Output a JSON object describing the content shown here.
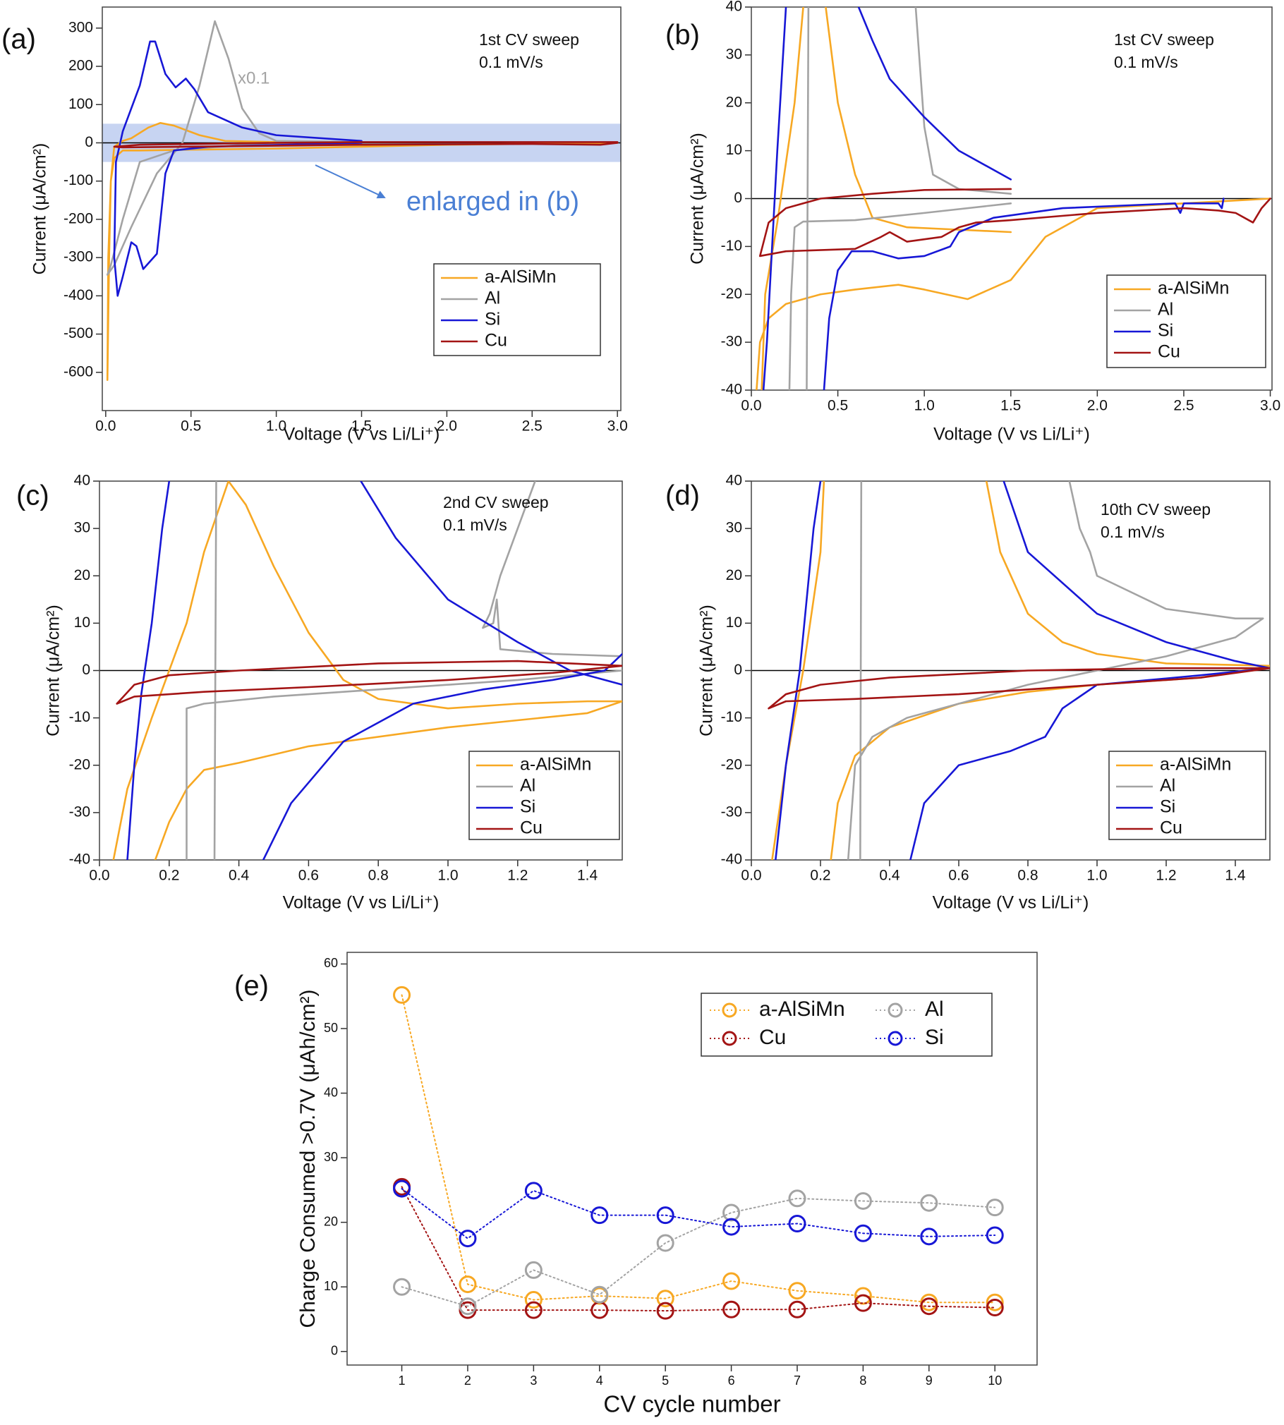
{
  "chart_data": [
    {
      "type": "line",
      "panel_label": "(a)",
      "title": "1st CV sweep",
      "subtitle": "0.1 mV/s",
      "annotations": [
        "x0.1",
        "enlarged in (b)"
      ],
      "highlight_band": [
        -50,
        50
      ],
      "band_color": "#c7d4f2",
      "xlabel": "Voltage (V vs Li/Li⁺)",
      "ylabel": "Current (μA/cm²)",
      "xlim": [
        -0.02,
        3.02
      ],
      "ylim": [
        -700,
        355
      ],
      "xticks": [
        {
          "value": 0,
          "label": "0.0"
        },
        0.5,
        {
          "value": 1,
          "label": "1.0"
        },
        1.5,
        {
          "value": 2,
          "label": "2.0"
        },
        2.5,
        {
          "value": 3,
          "label": "3.0"
        }
      ],
      "yticks": [
        -600,
        -500,
        -400,
        -300,
        -200,
        -100,
        0,
        100,
        200,
        300
      ],
      "zero_line": true,
      "legend": "lower right",
      "series": [
        {
          "name": "a-AlSiMn",
          "color": "#f7a823",
          "x": [
            3.0,
            2.0,
            1.5,
            1.0,
            0.5,
            0.2,
            0.1,
            0.05,
            0.03,
            0.02,
            0.01,
            0.015,
            0.03,
            0.05,
            0.1,
            0.15,
            0.25,
            0.32,
            0.4,
            0.55,
            0.7,
            1.0,
            1.5
          ],
          "values": [
            0,
            -5,
            -10,
            -15,
            -18,
            -20,
            -20,
            -40,
            -100,
            -300,
            -620,
            -300,
            -100,
            -10,
            5,
            12,
            40,
            52,
            45,
            20,
            5,
            2,
            2
          ]
        },
        {
          "name": "Al",
          "color": "#a3a3a3",
          "x": [
            1.5,
            0.8,
            0.4,
            0.2,
            0.1,
            0.03,
            0.01,
            0.05,
            0.15,
            0.3,
            0.45,
            0.55,
            0.64,
            0.72,
            0.8,
            0.9,
            1.0,
            1.5
          ],
          "values": [
            -3,
            -5,
            -20,
            -50,
            -200,
            -320,
            -345,
            -320,
            -220,
            -80,
            0,
            150,
            318,
            220,
            90,
            25,
            5,
            2
          ]
        },
        {
          "name": "Si",
          "color": "#1717d6",
          "x": [
            1.5,
            0.6,
            0.4,
            0.35,
            0.3,
            0.27,
            0.22,
            0.18,
            0.15,
            0.1,
            0.07,
            0.05,
            0.06,
            0.1,
            0.2,
            0.26,
            0.29,
            0.35,
            0.41,
            0.47,
            0.52,
            0.6,
            0.8,
            1.0,
            1.5
          ],
          "values": [
            0,
            -10,
            -20,
            -80,
            -290,
            -305,
            -330,
            -270,
            -260,
            -350,
            -400,
            -300,
            -50,
            30,
            150,
            265,
            265,
            180,
            145,
            168,
            140,
            80,
            40,
            20,
            5
          ]
        },
        {
          "name": "Cu",
          "color": "#a31414",
          "x": [
            3.0,
            2.9,
            2.5,
            1.5,
            0.5,
            0.1,
            0.05,
            0.2,
            1.0,
            1.5,
            3.0
          ],
          "values": [
            0,
            -5,
            -3,
            -5,
            -10,
            -12,
            -10,
            -5,
            0,
            2,
            2
          ]
        }
      ]
    },
    {
      "type": "line",
      "panel_label": "(b)",
      "title": "1st CV sweep",
      "subtitle": "0.1 mV/s",
      "xlabel": "Voltage (V vs Li/Li⁺)",
      "ylabel": "Current (μA/cm²)",
      "xlim": [
        0,
        3.01
      ],
      "ylim": [
        -40,
        40
      ],
      "xticks": [
        {
          "value": 0,
          "label": "0.0"
        },
        0.5,
        {
          "value": 1,
          "label": "1.0"
        },
        1.5,
        {
          "value": 2,
          "label": "2.0"
        },
        2.5,
        {
          "value": 3,
          "label": "3.0"
        }
      ],
      "yticks": [
        -40,
        -30,
        -20,
        -10,
        0,
        10,
        20,
        30,
        40
      ],
      "zero_line": true,
      "legend": "lower right",
      "series": [
        {
          "name": "a-AlSiMn",
          "color": "#f7a823",
          "x": [
            3.0,
            2.5,
            2.0,
            1.7,
            1.5,
            1.25,
            1.0,
            0.85,
            0.6,
            0.4,
            0.2,
            0.1,
            0.05,
            0.03,
            null,
            0.06,
            0.08,
            0.15,
            0.25,
            0.3,
            null,
            0.43,
            0.5,
            0.6,
            0.7,
            0.9,
            1.2,
            1.5
          ],
          "values": [
            0,
            -1,
            -2,
            -8,
            -17,
            -21,
            -19,
            -18,
            -19,
            -20,
            -22,
            -25,
            -30,
            -40,
            null,
            -40,
            -20,
            -5,
            20,
            40,
            null,
            40,
            20,
            5,
            -4,
            -6,
            -6.5,
            -7
          ]
        },
        {
          "name": "Al",
          "color": "#a3a3a3",
          "x": [
            1.5,
            1.2,
            1.05,
            1.0,
            0.95,
            null,
            1.5,
            1.0,
            0.6,
            0.3,
            0.25,
            0.23,
            0.22,
            null,
            0.32,
            0.33
          ],
          "values": [
            1,
            2,
            5,
            15,
            40,
            null,
            -1,
            -3,
            -4.5,
            -4.8,
            -6,
            -20,
            -40,
            null,
            -40,
            40
          ]
        },
        {
          "name": "Si",
          "color": "#1717d6",
          "x": [
            1.5,
            1.2,
            1.0,
            0.8,
            0.7,
            0.62,
            null,
            0.2,
            0.15,
            0.12,
            0.09,
            0.07,
            null,
            0.42,
            0.45,
            0.5,
            0.58,
            0.7,
            0.85,
            1.0,
            1.15,
            1.2,
            1.4,
            1.8,
            2.45,
            2.48,
            2.5,
            2.7,
            2.72,
            2.73
          ],
          "values": [
            4,
            10,
            17,
            25,
            33,
            40,
            null,
            40,
            10,
            -10,
            -30,
            -40,
            null,
            -40,
            -25,
            -15,
            -11,
            -11,
            -12.5,
            -12,
            -10,
            -7,
            -4,
            -2,
            -1,
            -3,
            -1,
            -1,
            -2,
            0
          ]
        },
        {
          "name": "Cu",
          "color": "#a31414",
          "x": [
            1.5,
            1.0,
            0.7,
            0.4,
            0.2,
            0.1,
            0.05,
            0.2,
            0.6,
            0.75,
            0.8,
            0.9,
            1.1,
            1.2,
            1.3,
            1.5,
            2.0,
            2.5,
            2.7,
            2.8,
            2.9,
            2.95,
            3.0
          ],
          "values": [
            2,
            1.8,
            1,
            0,
            -2,
            -5,
            -12,
            -11,
            -10.5,
            -8,
            -7,
            -9,
            -8,
            -6,
            -5,
            -4.5,
            -3,
            -2,
            -2.5,
            -3,
            -5,
            -2,
            0
          ]
        }
      ]
    },
    {
      "type": "line",
      "panel_label": "(c)",
      "title": "2nd CV sweep",
      "subtitle": "0.1 mV/s",
      "xlabel": "Voltage (V vs Li/Li⁺)",
      "ylabel": "Current (μA/cm²)",
      "xlim": [
        0,
        1.5
      ],
      "ylim": [
        -40,
        40
      ],
      "xticks": [
        {
          "value": 0,
          "label": "0.0"
        },
        0.2,
        0.4,
        0.6,
        0.8,
        {
          "value": 1,
          "label": "1.0"
        },
        1.2,
        1.4
      ],
      "yticks": [
        -40,
        -30,
        -20,
        -10,
        0,
        10,
        20,
        30,
        40
      ],
      "zero_line": true,
      "legend": "lower right",
      "series": [
        {
          "name": "a-AlSiMn",
          "color": "#f7a823",
          "x": [
            0.04,
            0.08,
            0.15,
            0.25,
            0.3,
            0.37,
            0.42,
            0.5,
            0.55,
            0.6,
            0.7,
            0.8,
            1.0,
            1.2,
            1.4,
            1.5,
            1.4,
            1.0,
            0.6,
            0.4,
            0.3,
            0.25,
            0.2,
            0.16
          ],
          "values": [
            -40,
            -25,
            -10,
            10,
            25,
            40,
            35,
            22,
            15,
            8,
            -2,
            -6,
            -8,
            -7,
            -6.5,
            -6.5,
            -9,
            -12,
            -16,
            -19.5,
            -21,
            -25,
            -32,
            -40
          ]
        },
        {
          "name": "Al",
          "color": "#a3a3a3",
          "x": [
            0.25,
            0.25,
            0.3,
            0.5,
            0.8,
            1.2,
            1.5,
            null,
            1.5,
            1.3,
            1.15,
            1.14,
            1.13,
            1.1,
            1.12,
            1.15,
            1.2,
            1.25,
            null,
            0.33,
            0.335
          ],
          "values": [
            -40,
            -8,
            -7,
            -5.5,
            -4,
            -2,
            0,
            null,
            3,
            3.5,
            4.5,
            15,
            10,
            9,
            12,
            20,
            30,
            40,
            null,
            -40,
            40
          ]
        },
        {
          "name": "Si",
          "color": "#1717d6",
          "x": [
            0.08,
            0.1,
            0.12,
            0.15,
            0.18,
            0.2,
            null,
            0.75,
            0.85,
            1.0,
            1.2,
            1.35,
            1.5,
            null,
            0.47,
            0.55,
            0.7,
            0.9,
            1.1,
            1.3,
            1.45,
            1.5
          ],
          "values": [
            -40,
            -20,
            -5,
            10,
            30,
            40,
            null,
            40,
            28,
            15,
            6,
            0,
            -3,
            null,
            -40,
            -28,
            -15,
            -7,
            -4,
            -2,
            0,
            3.5
          ]
        },
        {
          "name": "Cu",
          "color": "#a31414",
          "x": [
            0.05,
            0.1,
            0.3,
            0.6,
            1.0,
            1.3,
            1.5,
            1.2,
            0.8,
            0.4,
            0.2,
            0.1,
            0.05
          ],
          "values": [
            -7,
            -5.5,
            -4.5,
            -3.5,
            -2,
            -0.5,
            1,
            2,
            1.5,
            0,
            -1,
            -3,
            -7
          ]
        }
      ]
    },
    {
      "type": "line",
      "panel_label": "(d)",
      "title": "10th CV sweep",
      "subtitle": "0.1 mV/s",
      "xlabel": "Voltage (V vs Li/Li⁺)",
      "ylabel": "Current (μA/cm²)",
      "xlim": [
        0,
        1.5
      ],
      "ylim": [
        -40,
        40
      ],
      "xticks": [
        {
          "value": 0,
          "label": "0.0"
        },
        0.2,
        0.4,
        0.6,
        0.8,
        {
          "value": 1,
          "label": "1.0"
        },
        1.2,
        1.4
      ],
      "yticks": [
        -40,
        -30,
        -20,
        -10,
        0,
        10,
        20,
        30,
        40
      ],
      "zero_line": true,
      "legend": "lower right",
      "series": [
        {
          "name": "a-AlSiMn",
          "color": "#f7a823",
          "x": [
            0.06,
            0.1,
            0.15,
            0.2,
            0.21,
            null,
            0.68,
            0.72,
            0.8,
            0.9,
            1.0,
            1.2,
            1.5,
            1.3,
            1.0,
            0.8,
            0.6,
            0.4,
            0.3,
            0.25,
            0.23
          ],
          "values": [
            -40,
            -20,
            0,
            25,
            40,
            null,
            40,
            25,
            12,
            6,
            3.5,
            1.5,
            1,
            -1.5,
            -3,
            -4.5,
            -7,
            -12,
            -18,
            -28,
            -40
          ]
        },
        {
          "name": "Al",
          "color": "#a3a3a3",
          "x": [
            0.28,
            0.3,
            0.35,
            0.45,
            0.6,
            0.8,
            1.0,
            1.2,
            1.4,
            1.48,
            1.4,
            1.2,
            1.0,
            0.98,
            0.95,
            0.92,
            null,
            0.315,
            0.318
          ],
          "values": [
            -40,
            -20,
            -14,
            -10,
            -7,
            -3,
            0,
            3,
            7,
            11,
            11,
            13,
            20,
            25,
            30,
            40,
            null,
            -40,
            40
          ]
        },
        {
          "name": "Si",
          "color": "#1717d6",
          "x": [
            0.07,
            0.1,
            0.14,
            0.18,
            0.2,
            null,
            0.73,
            0.8,
            1.0,
            1.2,
            1.4,
            1.5,
            1.3,
            1.0,
            0.9,
            0.85,
            0.75,
            0.6,
            0.5,
            0.46
          ],
          "values": [
            -40,
            -20,
            0,
            30,
            40,
            null,
            40,
            25,
            12,
            6,
            2,
            0.5,
            -1,
            -3,
            -8,
            -14,
            -17,
            -20,
            -28,
            -40
          ]
        },
        {
          "name": "Cu",
          "color": "#a31414",
          "x": [
            0.05,
            0.1,
            0.3,
            0.6,
            1.0,
            1.3,
            1.5,
            1.2,
            0.8,
            0.4,
            0.2,
            0.1,
            0.05
          ],
          "values": [
            -8,
            -6.5,
            -6,
            -5,
            -3,
            -1.5,
            0.5,
            0.5,
            0,
            -1.5,
            -3,
            -5,
            -8
          ]
        }
      ]
    },
    {
      "type": "line",
      "panel_label": "(e)",
      "xlabel": "CV cycle number",
      "ylabel": "Charge Consumed >0.7V (μAh/cm²)",
      "x": [
        1,
        2,
        3,
        4,
        5,
        6,
        7,
        8,
        9,
        10
      ],
      "xlim": [
        0.17,
        10.64
      ],
      "ylim": [
        -2.1,
        61.8
      ],
      "xticks": [
        1,
        2,
        3,
        4,
        5,
        6,
        7,
        8,
        9,
        10
      ],
      "yticks": [
        0,
        10,
        20,
        30,
        40,
        50,
        60
      ],
      "markers": true,
      "line_style": "dotted",
      "legend": "upper right",
      "legend_columns": 2,
      "series": [
        {
          "name": "a-AlSiMn",
          "color": "#f7a823",
          "values": [
            55.2,
            10.4,
            8.0,
            8.6,
            8.2,
            10.9,
            9.4,
            8.6,
            7.6,
            7.6
          ]
        },
        {
          "name": "Cu",
          "color": "#a31414",
          "values": [
            25.5,
            6.4,
            6.4,
            6.4,
            6.3,
            6.5,
            6.5,
            7.5,
            7.0,
            6.8
          ]
        },
        {
          "name": "Al",
          "color": "#a3a3a3",
          "values": [
            10.0,
            7.0,
            12.6,
            8.8,
            16.8,
            21.5,
            23.7,
            23.3,
            23.0,
            22.3
          ]
        },
        {
          "name": "Si",
          "color": "#1717d6",
          "values": [
            25.2,
            17.5,
            24.9,
            21.1,
            21.1,
            19.3,
            19.8,
            18.3,
            17.8,
            18.0
          ]
        }
      ]
    }
  ]
}
